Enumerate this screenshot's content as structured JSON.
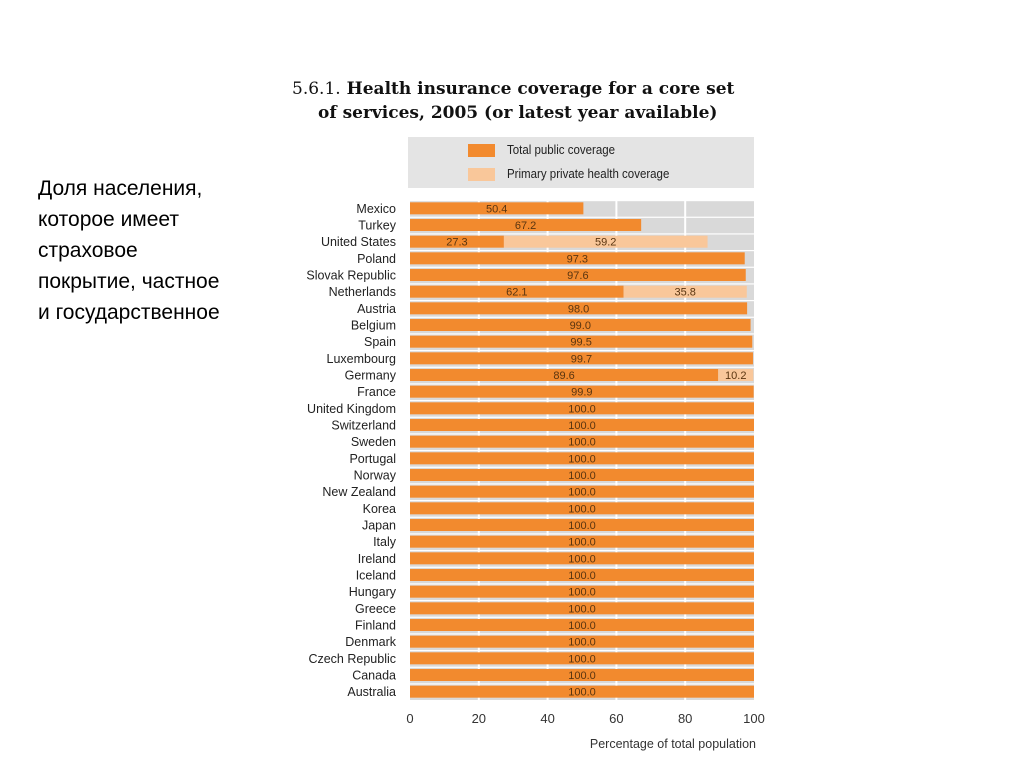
{
  "side_text": {
    "lines": [
      "Доля населения,",
      "которое имеет",
      "страховое",
      "покрытие, частное",
      "и государственное"
    ]
  },
  "colors": {
    "public": "#f28a2e",
    "private": "#f9c79a",
    "background": "#d9d9d9",
    "legend_background": "#e4e4e4",
    "label_text": "#5a3510"
  },
  "chart_data": {
    "type": "bar",
    "orientation": "horizontal",
    "stacked": true,
    "title_number": "5.6.1.",
    "title": "Health insurance coverage for a core set of services, 2005 (or latest year available)",
    "title_line1": "Health insurance coverage for a core set",
    "title_line2": "of services, 2005 (or latest year available)",
    "xlabel": "Percentage of total population",
    "ylabel": "",
    "xlim": [
      0,
      100
    ],
    "xticks": [
      0,
      20,
      40,
      60,
      80,
      100
    ],
    "grid": true,
    "legend_position": "top",
    "categories": [
      "Mexico",
      "Turkey",
      "United States",
      "Poland",
      "Slovak Republic",
      "Netherlands",
      "Austria",
      "Belgium",
      "Spain",
      "Luxembourg",
      "Germany",
      "France",
      "United Kingdom",
      "Switzerland",
      "Sweden",
      "Portugal",
      "Norway",
      "New Zealand",
      "Korea",
      "Japan",
      "Italy",
      "Ireland",
      "Iceland",
      "Hungary",
      "Greece",
      "Finland",
      "Denmark",
      "Czech Republic",
      "Canada",
      "Australia"
    ],
    "series": [
      {
        "name": "Total public coverage",
        "values": [
          50.4,
          67.2,
          27.3,
          97.3,
          97.6,
          62.1,
          98.0,
          99.0,
          99.5,
          99.7,
          89.6,
          99.9,
          100.0,
          100.0,
          100.0,
          100.0,
          100.0,
          100.0,
          100.0,
          100.0,
          100.0,
          100.0,
          100.0,
          100.0,
          100.0,
          100.0,
          100.0,
          100.0,
          100.0,
          100.0
        ]
      },
      {
        "name": "Primary private health coverage",
        "values": [
          null,
          null,
          59.2,
          null,
          null,
          35.8,
          null,
          null,
          null,
          null,
          10.2,
          null,
          null,
          null,
          null,
          null,
          null,
          null,
          null,
          null,
          null,
          null,
          null,
          null,
          null,
          null,
          null,
          null,
          null,
          null
        ]
      }
    ]
  }
}
